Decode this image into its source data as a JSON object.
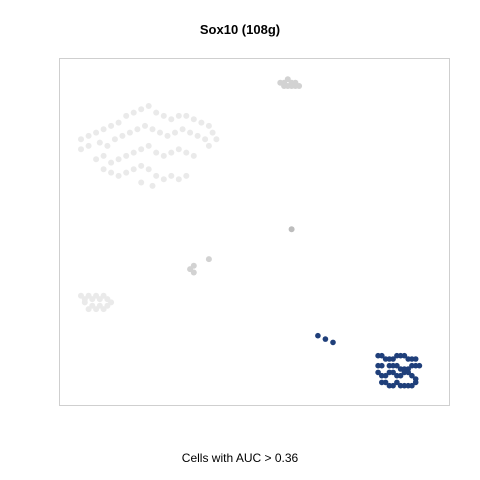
{
  "chart_data": {
    "type": "scatter",
    "title": "Sox10 (108g)",
    "caption": "Cells with AUC > 0.36",
    "xlim": [
      0,
      100
    ],
    "ylim": [
      0,
      100
    ],
    "axes_visible": false,
    "grid": false,
    "legend": "none",
    "colors": {
      "highlight": "#1f3f7a",
      "background_faint": "#eaeaea",
      "background_mid": "#d2d2d2",
      "background_dark": "#bdbdbd",
      "frame": "#cfcfcf"
    },
    "series": [
      {
        "group": "below-threshold",
        "color": "#eaeaea",
        "points": [
          [
            4,
            78
          ],
          [
            6,
            79
          ],
          [
            8,
            80
          ],
          [
            10,
            81
          ],
          [
            12,
            82
          ],
          [
            14,
            83
          ],
          [
            16,
            85
          ],
          [
            18,
            86
          ],
          [
            20,
            87
          ],
          [
            22,
            88
          ],
          [
            24,
            86
          ],
          [
            26,
            85
          ],
          [
            28,
            84
          ],
          [
            30,
            85
          ],
          [
            32,
            85
          ],
          [
            34,
            84
          ],
          [
            36,
            83
          ],
          [
            38,
            82
          ],
          [
            39,
            80
          ],
          [
            40,
            78
          ],
          [
            4,
            75
          ],
          [
            6,
            76
          ],
          [
            9,
            77
          ],
          [
            11,
            76
          ],
          [
            13,
            78
          ],
          [
            15,
            79
          ],
          [
            17,
            80
          ],
          [
            19,
            81
          ],
          [
            21,
            82
          ],
          [
            23,
            81
          ],
          [
            25,
            80
          ],
          [
            27,
            79
          ],
          [
            29,
            80
          ],
          [
            31,
            81
          ],
          [
            33,
            80
          ],
          [
            35,
            79
          ],
          [
            37,
            78
          ],
          [
            38,
            76
          ],
          [
            8,
            72
          ],
          [
            10,
            73
          ],
          [
            12,
            71
          ],
          [
            14,
            72
          ],
          [
            16,
            73
          ],
          [
            18,
            74
          ],
          [
            20,
            75
          ],
          [
            22,
            76
          ],
          [
            24,
            74
          ],
          [
            26,
            73
          ],
          [
            28,
            74
          ],
          [
            30,
            75
          ],
          [
            32,
            74
          ],
          [
            34,
            73
          ],
          [
            10,
            69
          ],
          [
            12,
            68
          ],
          [
            14,
            67
          ],
          [
            16,
            68
          ],
          [
            18,
            69
          ],
          [
            20,
            70
          ],
          [
            22,
            69
          ],
          [
            24,
            67
          ],
          [
            26,
            66
          ],
          [
            28,
            67
          ],
          [
            30,
            66
          ],
          [
            32,
            67
          ],
          [
            20,
            65
          ],
          [
            23,
            64
          ],
          [
            4,
            31
          ],
          [
            5,
            30
          ],
          [
            6,
            31
          ],
          [
            7,
            30
          ],
          [
            8,
            31
          ],
          [
            9,
            30
          ],
          [
            10,
            31
          ],
          [
            11,
            30
          ],
          [
            5,
            29
          ],
          [
            7,
            28
          ],
          [
            9,
            28
          ],
          [
            11,
            28
          ],
          [
            6,
            27
          ],
          [
            8,
            27
          ],
          [
            10,
            27
          ],
          [
            12,
            29
          ]
        ]
      },
      {
        "group": "below-threshold-mid",
        "color": "#d2d2d2",
        "points": [
          [
            57,
            95
          ],
          [
            58,
            94
          ],
          [
            59,
            94
          ],
          [
            60,
            94
          ],
          [
            61,
            94
          ],
          [
            62,
            94
          ],
          [
            59,
            96
          ],
          [
            60,
            95
          ],
          [
            58,
            95
          ],
          [
            61,
            95
          ],
          [
            33,
            39
          ],
          [
            34,
            38
          ],
          [
            34,
            40
          ],
          [
            38,
            42
          ]
        ]
      },
      {
        "group": "below-threshold-dark",
        "color": "#bdbdbd",
        "points": [
          [
            60,
            51
          ]
        ]
      },
      {
        "group": "above-threshold",
        "color": "#1f3f7a",
        "points": [
          [
            67,
            19
          ],
          [
            69,
            18
          ],
          [
            71,
            17
          ],
          [
            83,
            13
          ],
          [
            84,
            13
          ],
          [
            85,
            12
          ],
          [
            86,
            12
          ],
          [
            87,
            12
          ],
          [
            88,
            13
          ],
          [
            89,
            13
          ],
          [
            90,
            13
          ],
          [
            91,
            12
          ],
          [
            92,
            12
          ],
          [
            93,
            12
          ],
          [
            83,
            10
          ],
          [
            84,
            10
          ],
          [
            86,
            10
          ],
          [
            87,
            10
          ],
          [
            88,
            10
          ],
          [
            89,
            9
          ],
          [
            90,
            9
          ],
          [
            91,
            9
          ],
          [
            92,
            10
          ],
          [
            93,
            10
          ],
          [
            94,
            10
          ],
          [
            83,
            8
          ],
          [
            84,
            7
          ],
          [
            85,
            7
          ],
          [
            86,
            8
          ],
          [
            87,
            8
          ],
          [
            88,
            7
          ],
          [
            89,
            7
          ],
          [
            90,
            8
          ],
          [
            91,
            8
          ],
          [
            92,
            7
          ],
          [
            93,
            6
          ],
          [
            84,
            5
          ],
          [
            85,
            5
          ],
          [
            86,
            4
          ],
          [
            87,
            4
          ],
          [
            88,
            5
          ],
          [
            89,
            4
          ],
          [
            90,
            4
          ],
          [
            91,
            4
          ],
          [
            92,
            4
          ],
          [
            93,
            5
          ]
        ]
      }
    ]
  }
}
